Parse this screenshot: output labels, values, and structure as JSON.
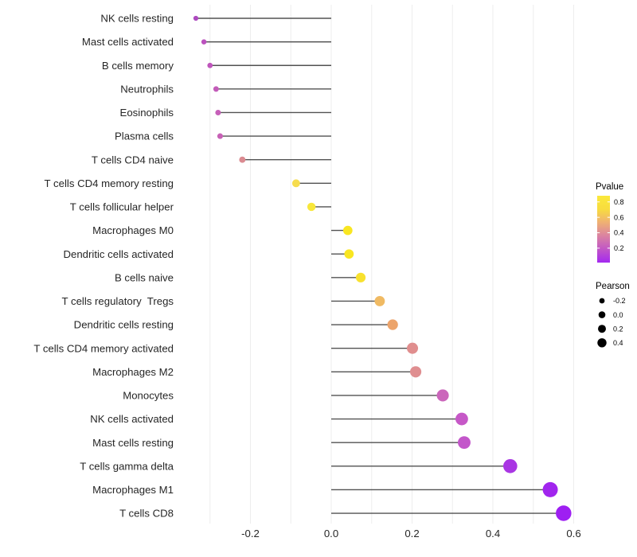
{
  "chart_data": {
    "type": "lollipop",
    "title": "",
    "xlabel": "",
    "ylabel": "",
    "xlim": [
      -0.375,
      0.62
    ],
    "x_ticks": [
      -0.2,
      0.0,
      0.2,
      0.4,
      0.6
    ],
    "x_tick_labels": [
      "-0.2",
      "0.0",
      "0.2",
      "0.4",
      "0.6"
    ],
    "x_minor_grid": [
      -0.3,
      -0.1,
      0.1,
      0.3,
      0.5
    ],
    "grid": true,
    "baseline": 0.0,
    "rows": [
      {
        "label": "NK cells resting",
        "pearson": -0.335,
        "dot_color": "#ad4abf"
      },
      {
        "label": "Mast cells activated",
        "pearson": -0.315,
        "dot_color": "#bb52be"
      },
      {
        "label": "B cells memory",
        "pearson": -0.3,
        "dot_color": "#bf56bc"
      },
      {
        "label": "Neutrophils",
        "pearson": -0.285,
        "dot_color": "#c35cb9"
      },
      {
        "label": "Eosinophils",
        "pearson": -0.28,
        "dot_color": "#c660b9"
      },
      {
        "label": "Plasma cells",
        "pearson": -0.275,
        "dot_color": "#c761b6"
      },
      {
        "label": "T cells CD4 naive",
        "pearson": -0.22,
        "dot_color": "#db8b91"
      },
      {
        "label": "T cells CD4 memory resting",
        "pearson": -0.087,
        "dot_color": "#f6dc4e"
      },
      {
        "label": "T cells follicular helper",
        "pearson": -0.049,
        "dot_color": "#f8e73b"
      },
      {
        "label": "Macrophages M0",
        "pearson": 0.041,
        "dot_color": "#f9e621"
      },
      {
        "label": "Dendritic cells activated",
        "pearson": 0.044,
        "dot_color": "#f9e621"
      },
      {
        "label": "B cells naive",
        "pearson": 0.073,
        "dot_color": "#f8e12e"
      },
      {
        "label": "T cells regulatory  Tregs",
        "pearson": 0.12,
        "dot_color": "#f0ba63"
      },
      {
        "label": "Dendritic cells resting",
        "pearson": 0.152,
        "dot_color": "#eca46b"
      },
      {
        "label": "T cells CD4 memory activated",
        "pearson": 0.201,
        "dot_color": "#e08e8e"
      },
      {
        "label": "Macrophages M2",
        "pearson": 0.209,
        "dot_color": "#df8e90"
      },
      {
        "label": "Monocytes",
        "pearson": 0.276,
        "dot_color": "#cb66bb"
      },
      {
        "label": "NK cells activated",
        "pearson": 0.323,
        "dot_color": "#c658c7"
      },
      {
        "label": "Mast cells resting",
        "pearson": 0.329,
        "dot_color": "#c356ca"
      },
      {
        "label": "T cells gamma delta",
        "pearson": 0.443,
        "dot_color": "#a936e3"
      },
      {
        "label": "Macrophages M1",
        "pearson": 0.542,
        "dot_color": "#a125ee"
      },
      {
        "label": "T cells CD8",
        "pearson": 0.575,
        "dot_color": "#9e1ff2"
      }
    ],
    "legend": {
      "pvalue": {
        "title": "Pvalue",
        "tick_labels": [
          "0.8",
          "0.6",
          "0.4",
          "0.2"
        ],
        "tick_values": [
          0.8,
          0.6,
          0.4,
          0.2
        ],
        "range": [
          0.013,
          0.88
        ],
        "gradient_bottom_to_top": [
          "#a429f0",
          "#c156c6",
          "#da82a2",
          "#efb074",
          "#f8dc3f",
          "#fae93b"
        ]
      },
      "pearson": {
        "title": "Pearson",
        "items": [
          {
            "label": "-0.2",
            "value": -0.2,
            "r": 3.4
          },
          {
            "label": "0.0",
            "value": 0.0,
            "r": 4.3
          },
          {
            "label": "0.2",
            "value": 0.2,
            "r": 5.0
          },
          {
            "label": "0.4",
            "value": 0.4,
            "r": 5.7
          }
        ],
        "dot_color": "#000000"
      }
    }
  },
  "colors": {
    "background": "#ffffff",
    "grid": "#ededed",
    "stem": "#3a3a3a",
    "axis_text": "#262626",
    "legend_dot": "#000000"
  }
}
